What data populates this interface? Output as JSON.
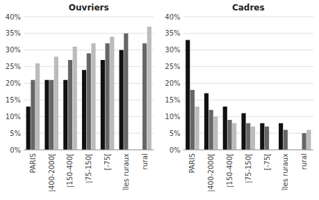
{
  "chart_data": [
    {
      "type": "bar",
      "title": "Ouvriers",
      "categories": [
        "PARIS",
        "|400-2000[",
        "|150-400[",
        "|75-150[",
        "[-75[",
        "îles ruraux",
        "rural"
      ],
      "series": [
        {
          "color": "#111111",
          "values": [
            13,
            21,
            21,
            24,
            27,
            30,
            0
          ]
        },
        {
          "color": "#666666",
          "values": [
            21,
            21,
            27,
            29,
            32,
            35,
            32
          ]
        },
        {
          "color": "#bbbbbb",
          "values": [
            26,
            28,
            31,
            32,
            34,
            0,
            37
          ]
        }
      ],
      "ylim": [
        0,
        40
      ],
      "yticks": [
        {
          "value": 0,
          "label": "0%"
        },
        {
          "value": 5,
          "label": "5%"
        },
        {
          "value": 10,
          "label": "10%"
        },
        {
          "value": 15,
          "label": "15%"
        },
        {
          "value": 20,
          "label": "20%"
        },
        {
          "value": 25,
          "label": "25%"
        },
        {
          "value": 30,
          "label": "30%"
        },
        {
          "value": 35,
          "label": "35%"
        },
        {
          "value": 40,
          "label": "40%"
        }
      ],
      "grid": true
    },
    {
      "type": "bar",
      "title": "Cadres",
      "categories": [
        "PARIS",
        "|400-2000[",
        "|150-400[",
        "|75-150[",
        "[-75[",
        "îles ruraux",
        "rural"
      ],
      "series": [
        {
          "color": "#111111",
          "values": [
            33,
            17,
            13,
            11,
            8,
            8,
            0
          ]
        },
        {
          "color": "#666666",
          "values": [
            18,
            12,
            9,
            8,
            7,
            6,
            5
          ]
        },
        {
          "color": "#bbbbbb",
          "values": [
            13,
            10,
            8,
            7,
            0,
            0,
            6
          ]
        }
      ],
      "ylim": [
        0,
        40
      ],
      "yticks": [
        {
          "value": 0,
          "label": "0%"
        },
        {
          "value": 5,
          "label": "5%"
        },
        {
          "value": 10,
          "label": "10%"
        },
        {
          "value": 15,
          "label": "15%"
        },
        {
          "value": 20,
          "label": "20%"
        },
        {
          "value": 25,
          "label": "25%"
        },
        {
          "value": 30,
          "label": "30%"
        },
        {
          "value": 35,
          "label": "35%"
        },
        {
          "value": 40,
          "label": "40%"
        }
      ],
      "grid": true
    }
  ]
}
